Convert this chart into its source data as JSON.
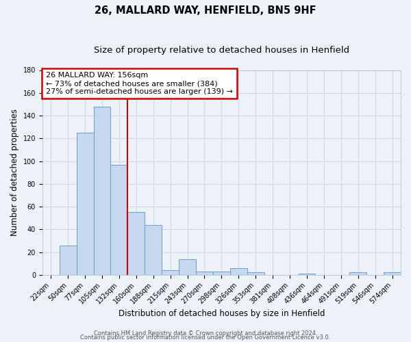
{
  "title": "26, MALLARD WAY, HENFIELD, BN5 9HF",
  "subtitle": "Size of property relative to detached houses in Henfield",
  "xlabel": "Distribution of detached houses by size in Henfield",
  "ylabel": "Number of detached properties",
  "bin_labels": [
    "22sqm",
    "50sqm",
    "77sqm",
    "105sqm",
    "132sqm",
    "160sqm",
    "188sqm",
    "215sqm",
    "243sqm",
    "270sqm",
    "298sqm",
    "326sqm",
    "353sqm",
    "381sqm",
    "408sqm",
    "436sqm",
    "464sqm",
    "491sqm",
    "519sqm",
    "546sqm",
    "574sqm"
  ],
  "bar_heights": [
    0,
    26,
    125,
    148,
    97,
    55,
    44,
    4,
    14,
    3,
    3,
    6,
    2,
    0,
    0,
    1,
    0,
    0,
    2,
    0,
    2
  ],
  "bar_color": "#c5d8ef",
  "bar_edge_color": "#6b9ec8",
  "vline_x": 4.5,
  "vline_color": "#cc0000",
  "annotation_line1": "26 MALLARD WAY: 156sqm",
  "annotation_line2": "← 73% of detached houses are smaller (384)",
  "annotation_line3": "27% of semi-detached houses are larger (139) →",
  "annotation_box_color": "#ffffff",
  "annotation_box_edge": "#cc0000",
  "ylim": [
    0,
    180
  ],
  "yticks": [
    0,
    20,
    40,
    60,
    80,
    100,
    120,
    140,
    160,
    180
  ],
  "grid_color": "#d0d8e8",
  "background_color": "#edf2f9",
  "footer_line1": "Contains HM Land Registry data © Crown copyright and database right 2024.",
  "footer_line2": "Contains public sector information licensed under the Open Government Licence v3.0.",
  "title_fontsize": 10.5,
  "subtitle_fontsize": 9.5,
  "xlabel_fontsize": 8.5,
  "ylabel_fontsize": 8.5,
  "tick_fontsize": 7,
  "annotation_fontsize": 8,
  "footer_fontsize": 6
}
